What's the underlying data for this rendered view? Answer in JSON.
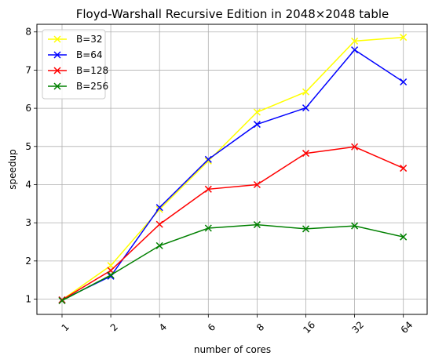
{
  "chart_data": {
    "type": "line",
    "title": "Floyd-Warshall Recursive Edition in 2048×2048 table",
    "xlabel": "number of cores",
    "ylabel": "speedup",
    "categories": [
      "1",
      "2",
      "4",
      "6",
      "8",
      "16",
      "32",
      "64"
    ],
    "ylim": [
      0.6,
      8.2
    ],
    "yticks": [
      1,
      2,
      3,
      4,
      5,
      6,
      7,
      8
    ],
    "grid": true,
    "legend_position": "top-left",
    "series": [
      {
        "name": "B=32",
        "color": "#ffff00",
        "values": [
          0.98,
          1.88,
          3.35,
          4.62,
          5.9,
          6.43,
          7.76,
          7.86
        ]
      },
      {
        "name": "B=64",
        "color": "#0000ff",
        "values": [
          0.98,
          1.6,
          3.4,
          4.66,
          5.58,
          6.01,
          7.53,
          6.69
        ]
      },
      {
        "name": "B=128",
        "color": "#ff0000",
        "values": [
          0.98,
          1.75,
          2.96,
          3.88,
          4.0,
          4.82,
          4.99,
          4.43
        ]
      },
      {
        "name": "B=256",
        "color": "#008000",
        "values": [
          0.96,
          1.63,
          2.4,
          2.86,
          2.95,
          2.84,
          2.92,
          2.63
        ]
      }
    ]
  }
}
